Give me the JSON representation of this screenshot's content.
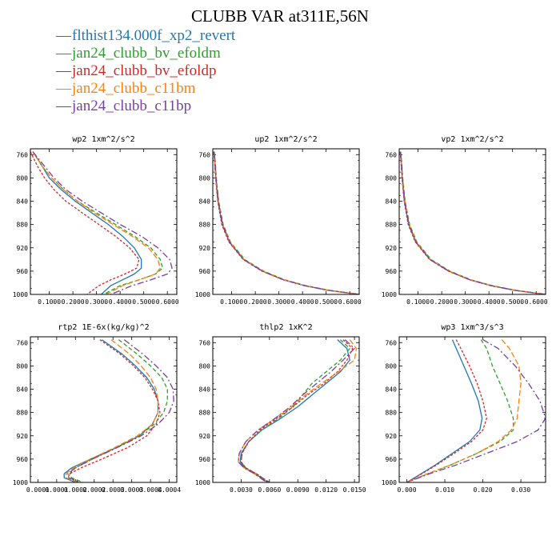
{
  "figure": {
    "title": "CLUBB VAR at311E,56N"
  },
  "legend": [
    {
      "name": "flthist134.000f_xp2_revert",
      "color": "#1f77b4"
    },
    {
      "name": "jan24_clubb_bv_efoldm",
      "color": "#2ca02c"
    },
    {
      "name": "jan24_clubb_bv_efoldp",
      "color": "#d62728"
    },
    {
      "name": "jan24_clubb_c11bm",
      "color": "#ff7f0e"
    },
    {
      "name": "jan24_clubb_c11bp",
      "color": "#7b3fa0"
    }
  ],
  "chart_data": [
    {
      "type": "line",
      "title": "wp2  1xm^2/s^2",
      "ylim": [
        1000,
        750
      ],
      "yticks": [
        760,
        800,
        840,
        880,
        920,
        960,
        1000
      ],
      "xlim": [
        0.02,
        0.64
      ],
      "xticks": [
        "0.1000",
        "0.2000",
        "0.3000",
        "0.4000",
        "0.5000",
        "0.6000"
      ],
      "xtick_values": [
        0.1,
        0.2,
        0.3,
        0.4,
        0.5,
        0.6
      ],
      "y": [
        755,
        780,
        800,
        820,
        840,
        860,
        880,
        900,
        920,
        940,
        955,
        965,
        975,
        985,
        1000
      ],
      "series": [
        {
          "name": "flthist134.000f_xp2_revert",
          "values": [
            0.03,
            0.07,
            0.1,
            0.15,
            0.21,
            0.28,
            0.35,
            0.41,
            0.46,
            0.49,
            0.49,
            0.46,
            0.41,
            0.36,
            0.32
          ]
        },
        {
          "name": "jan24_clubb_bv_efoldm",
          "values": [
            0.03,
            0.07,
            0.11,
            0.16,
            0.22,
            0.3,
            0.38,
            0.46,
            0.53,
            0.57,
            0.58,
            0.55,
            0.48,
            0.4,
            0.33
          ]
        },
        {
          "name": "jan24_clubb_bv_efoldp",
          "values": [
            0.02,
            0.05,
            0.08,
            0.12,
            0.17,
            0.24,
            0.31,
            0.38,
            0.44,
            0.48,
            0.47,
            0.42,
            0.36,
            0.31,
            0.26
          ]
        },
        {
          "name": "jan24_clubb_c11bm",
          "values": [
            0.03,
            0.07,
            0.11,
            0.16,
            0.22,
            0.29,
            0.37,
            0.45,
            0.52,
            0.56,
            0.57,
            0.55,
            0.48,
            0.41,
            0.34
          ]
        },
        {
          "name": "jan24_clubb_c11bp",
          "values": [
            0.03,
            0.08,
            0.12,
            0.17,
            0.24,
            0.32,
            0.4,
            0.49,
            0.56,
            0.61,
            0.62,
            0.6,
            0.53,
            0.45,
            0.36
          ]
        }
      ]
    },
    {
      "type": "line",
      "title": "up2  1xm^2/s^2",
      "ylim": [
        1000,
        750
      ],
      "yticks": [
        760,
        800,
        840,
        880,
        920,
        960,
        1000
      ],
      "xlim": [
        0.02,
        0.64
      ],
      "xticks": [
        "0.1000",
        "0.2000",
        "0.3000",
        "0.4000",
        "0.5000",
        "0.6000"
      ],
      "xtick_values": [
        0.1,
        0.2,
        0.3,
        0.4,
        0.5,
        0.6
      ],
      "y": [
        755,
        770,
        800,
        840,
        880,
        910,
        940,
        960,
        975,
        985,
        993,
        1000
      ],
      "series": [
        {
          "name": "flthist134.000f_xp2_revert",
          "values": [
            0.024,
            0.028,
            0.033,
            0.042,
            0.06,
            0.09,
            0.15,
            0.23,
            0.32,
            0.41,
            0.51,
            0.64
          ]
        },
        {
          "name": "jan24_clubb_bv_efoldm",
          "values": [
            0.026,
            0.03,
            0.035,
            0.045,
            0.064,
            0.095,
            0.155,
            0.235,
            0.325,
            0.415,
            0.515,
            0.64
          ]
        },
        {
          "name": "jan24_clubb_bv_efoldp",
          "values": [
            0.024,
            0.027,
            0.032,
            0.041,
            0.058,
            0.088,
            0.148,
            0.228,
            0.318,
            0.408,
            0.508,
            0.64
          ]
        },
        {
          "name": "jan24_clubb_c11bm",
          "values": [
            0.025,
            0.029,
            0.034,
            0.044,
            0.062,
            0.093,
            0.152,
            0.232,
            0.322,
            0.412,
            0.512,
            0.64
          ]
        },
        {
          "name": "jan24_clubb_c11bp",
          "values": [
            0.025,
            0.029,
            0.034,
            0.043,
            0.061,
            0.091,
            0.15,
            0.23,
            0.32,
            0.41,
            0.51,
            0.64
          ]
        }
      ]
    },
    {
      "type": "line",
      "title": "vp2  1xm^2/s^2",
      "ylim": [
        1000,
        750
      ],
      "yticks": [
        760,
        800,
        840,
        880,
        920,
        960,
        1000
      ],
      "xlim": [
        0.02,
        0.64
      ],
      "xticks": [
        "0.1000",
        "0.2000",
        "0.3000",
        "0.4000",
        "0.5000",
        "0.6000"
      ],
      "xtick_values": [
        0.1,
        0.2,
        0.3,
        0.4,
        0.5,
        0.6
      ],
      "y": [
        755,
        770,
        800,
        840,
        880,
        910,
        940,
        960,
        975,
        985,
        993,
        1000
      ],
      "series": [
        {
          "name": "flthist134.000f_xp2_revert",
          "values": [
            0.024,
            0.028,
            0.033,
            0.042,
            0.06,
            0.09,
            0.15,
            0.23,
            0.32,
            0.41,
            0.51,
            0.64
          ]
        },
        {
          "name": "jan24_clubb_bv_efoldm",
          "values": [
            0.026,
            0.03,
            0.035,
            0.045,
            0.064,
            0.095,
            0.155,
            0.235,
            0.325,
            0.415,
            0.515,
            0.64
          ]
        },
        {
          "name": "jan24_clubb_bv_efoldp",
          "values": [
            0.024,
            0.027,
            0.032,
            0.041,
            0.058,
            0.088,
            0.148,
            0.228,
            0.318,
            0.408,
            0.508,
            0.64
          ]
        },
        {
          "name": "jan24_clubb_c11bm",
          "values": [
            0.025,
            0.029,
            0.034,
            0.044,
            0.062,
            0.093,
            0.152,
            0.232,
            0.322,
            0.412,
            0.512,
            0.64
          ]
        },
        {
          "name": "jan24_clubb_c11bp",
          "values": [
            0.025,
            0.029,
            0.034,
            0.043,
            0.061,
            0.091,
            0.15,
            0.23,
            0.32,
            0.41,
            0.51,
            0.64
          ]
        }
      ]
    },
    {
      "type": "line",
      "title": "rtp2  1E-6x(kg/kg)^2",
      "ylim": [
        1000,
        750
      ],
      "yticks": [
        760,
        800,
        840,
        880,
        920,
        960,
        1000
      ],
      "xlim": [
        3e-05,
        0.00042
      ],
      "xticks": [
        "0.0001",
        "0.0001",
        "0.0002",
        "0.0002",
        "0.0003",
        "0.0003",
        "0.0004",
        "0.0004"
      ],
      "xtick_values": [
        5e-05,
        0.0001,
        0.00015,
        0.0002,
        0.00025,
        0.0003,
        0.00035,
        0.0004
      ],
      "y": [
        755,
        780,
        800,
        820,
        840,
        860,
        880,
        900,
        920,
        940,
        960,
        975,
        985,
        992,
        1000
      ],
      "series": [
        {
          "name": "flthist134.000f_xp2_revert",
          "values": [
            0.00022,
            0.000275,
            0.00031,
            0.00034,
            0.00036,
            0.00037,
            0.00037,
            0.000355,
            0.00032,
            0.00026,
            0.00019,
            0.00014,
            0.00012,
            0.00012,
            0.00015
          ]
        },
        {
          "name": "jan24_clubb_bv_efoldm",
          "values": [
            0.000265,
            0.000315,
            0.00035,
            0.00038,
            0.000395,
            0.000395,
            0.000385,
            0.00036,
            0.00032,
            0.00026,
            0.000195,
            0.00015,
            0.000135,
            0.00014,
            0.00017
          ]
        },
        {
          "name": "jan24_clubb_bv_efoldp",
          "values": [
            0.000215,
            0.00027,
            0.000305,
            0.000335,
            0.000355,
            0.00037,
            0.000375,
            0.000365,
            0.00034,
            0.00029,
            0.00022,
            0.000165,
            0.000135,
            0.00013,
            0.00016
          ]
        },
        {
          "name": "jan24_clubb_c11bm",
          "values": [
            0.000245,
            0.000295,
            0.000325,
            0.00035,
            0.000365,
            0.00037,
            0.00037,
            0.000355,
            0.000315,
            0.000255,
            0.00019,
            0.000145,
            0.000125,
            0.000125,
            0.000155
          ]
        },
        {
          "name": "jan24_clubb_c11bp",
          "values": [
            0.00028,
            0.00033,
            0.000365,
            0.000395,
            0.00041,
            0.000412,
            0.0004,
            0.00037,
            0.000325,
            0.000262,
            0.000195,
            0.00015,
            0.00013,
            0.000132,
            0.000165
          ]
        }
      ]
    },
    {
      "type": "line",
      "title": "thlp2  1xK^2",
      "ylim": [
        1000,
        750
      ],
      "yticks": [
        760,
        800,
        840,
        880,
        920,
        960,
        1000
      ],
      "xlim": [
        0.0,
        0.0155
      ],
      "xticks": [
        "0.0030",
        "0.0060",
        "0.0090",
        "0.0120",
        "0.0150"
      ],
      "xtick_values": [
        0.003,
        0.006,
        0.009,
        0.012,
        0.015
      ],
      "y": [
        755,
        770,
        790,
        810,
        830,
        850,
        870,
        890,
        910,
        930,
        950,
        965,
        975,
        985,
        1000
      ],
      "series": [
        {
          "name": "flthist134.000f_xp2_revert",
          "values": [
            0.0132,
            0.0142,
            0.0145,
            0.0135,
            0.012,
            0.0105,
            0.009,
            0.0072,
            0.0052,
            0.0038,
            0.003,
            0.0029,
            0.0034,
            0.0045,
            0.0058
          ]
        },
        {
          "name": "jan24_clubb_bv_efoldm",
          "values": [
            0.0135,
            0.0145,
            0.0135,
            0.012,
            0.0105,
            0.0095,
            0.0085,
            0.007,
            0.0052,
            0.0038,
            0.0031,
            0.003,
            0.0035,
            0.0046,
            0.006
          ]
        },
        {
          "name": "jan24_clubb_bv_efoldp",
          "values": [
            0.0138,
            0.0148,
            0.0142,
            0.0132,
            0.0118,
            0.01,
            0.0085,
            0.0068,
            0.005,
            0.0038,
            0.0031,
            0.003,
            0.0035,
            0.0046,
            0.006
          ]
        },
        {
          "name": "jan24_clubb_c11bm",
          "values": [
            0.0145,
            0.0152,
            0.015,
            0.0133,
            0.0115,
            0.0098,
            0.0083,
            0.0066,
            0.0048,
            0.0035,
            0.0028,
            0.0027,
            0.0033,
            0.0044,
            0.0057
          ]
        },
        {
          "name": "jan24_clubb_c11bp",
          "values": [
            0.014,
            0.015,
            0.0138,
            0.0125,
            0.011,
            0.0095,
            0.0082,
            0.0066,
            0.0048,
            0.0035,
            0.0028,
            0.0027,
            0.0033,
            0.0044,
            0.0057
          ]
        }
      ]
    },
    {
      "type": "line",
      "title": "wp3  1xm^3/s^3",
      "ylim": [
        1000,
        750
      ],
      "yticks": [
        760,
        800,
        840,
        880,
        920,
        960,
        1000
      ],
      "xlim": [
        -0.002,
        0.0365
      ],
      "xticks": [
        "0.000",
        "0.010",
        "0.020",
        "0.030"
      ],
      "xtick_values": [
        0.0,
        0.01,
        0.02,
        0.03
      ],
      "y": [
        755,
        770,
        800,
        830,
        860,
        890,
        910,
        930,
        950,
        970,
        985,
        1000
      ],
      "series": [
        {
          "name": "flthist134.000f_xp2_revert",
          "values": [
            0.012,
            0.013,
            0.015,
            0.017,
            0.0188,
            0.0198,
            0.0192,
            0.0165,
            0.012,
            0.0075,
            0.0038,
            0.0
          ]
        },
        {
          "name": "jan24_clubb_bv_efoldm",
          "values": [
            0.0195,
            0.021,
            0.0225,
            0.0245,
            0.0265,
            0.028,
            0.028,
            0.0245,
            0.0185,
            0.0115,
            0.0055,
            0.0
          ]
        },
        {
          "name": "jan24_clubb_bv_efoldp",
          "values": [
            0.013,
            0.0142,
            0.0165,
            0.0185,
            0.02,
            0.021,
            0.02,
            0.017,
            0.0125,
            0.0078,
            0.004,
            0.0
          ]
        },
        {
          "name": "jan24_clubb_c11bm",
          "values": [
            0.025,
            0.027,
            0.0295,
            0.03,
            0.0295,
            0.029,
            0.0275,
            0.024,
            0.0185,
            0.0115,
            0.0055,
            0.0
          ]
        },
        {
          "name": "jan24_clubb_c11bp",
          "values": [
            0.02,
            0.024,
            0.0285,
            0.032,
            0.035,
            0.0365,
            0.0345,
            0.029,
            0.021,
            0.013,
            0.006,
            0.0
          ]
        }
      ]
    }
  ]
}
